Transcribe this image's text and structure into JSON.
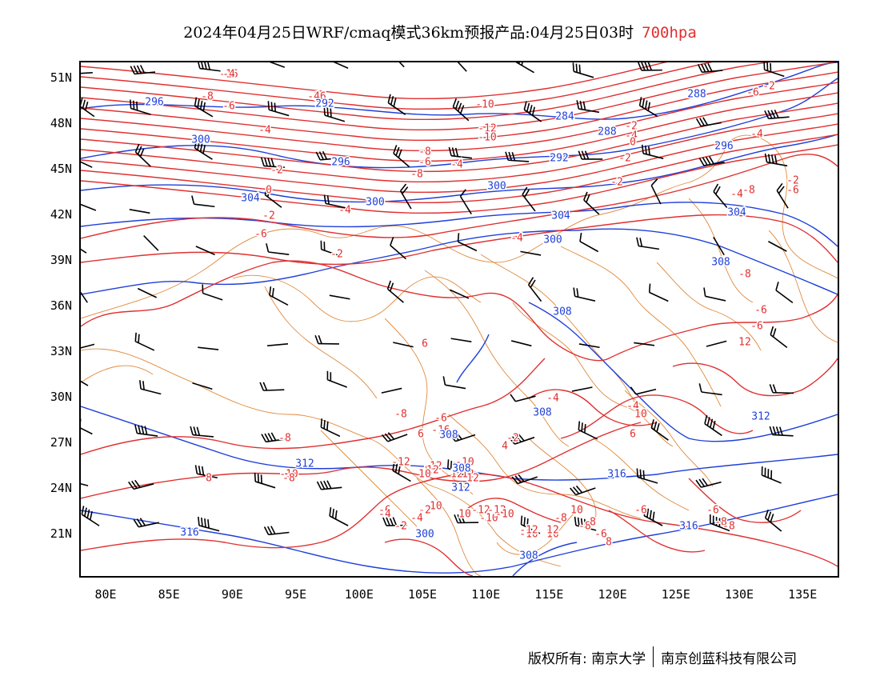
{
  "header": {
    "title": "2024年04月25日WRF/cmaq模式36km预报产品:04月25日03时",
    "level": "700hpa",
    "level_color": "#e03030"
  },
  "axes": {
    "lat_labels": [
      "51N",
      "48N",
      "45N",
      "42N",
      "39N",
      "36N",
      "33N",
      "30N",
      "27N",
      "24N",
      "21N"
    ],
    "lon_labels": [
      "80E",
      "85E",
      "90E",
      "95E",
      "100E",
      "105E",
      "110E",
      "115E",
      "120E",
      "125E",
      "130E",
      "135E"
    ]
  },
  "map": {
    "temperature_color": "#e03030",
    "height_color": "#1f3fd8",
    "border_color": "#e08a3c",
    "wind_barb_color": "#000000",
    "temperature_labels": [
      "-16",
      "-16",
      "-10",
      "-8",
      "-6",
      "-12",
      "-10",
      "-4",
      "-8",
      "-2",
      "-4",
      "-6",
      "-2",
      "0",
      "-2",
      "-4",
      "-6",
      "-8",
      "-2",
      "-2",
      "-6",
      "-4",
      "0",
      "-2",
      "-4",
      "-8",
      "-2",
      "-6",
      "-4",
      "-2",
      "-4",
      "-6",
      "-8",
      "-4",
      "6",
      "-4",
      "-2",
      "4",
      "6",
      "-8",
      "6",
      "8",
      "-10",
      "-12",
      "-8",
      "-10",
      "-12",
      "-10",
      "-12",
      "-16",
      "-8",
      "-6",
      "-8",
      "-6",
      "-4",
      "-2",
      "-2",
      "-4",
      "-6",
      "-8",
      "-8",
      "-6",
      "-10",
      "10",
      "12",
      "10",
      "12",
      "12",
      "10",
      "-12",
      "-10",
      "-12",
      "-10",
      "-12",
      "12",
      "-8",
      "10",
      "-8",
      "8",
      "-6",
      "8",
      "10",
      "12",
      "-6",
      "-4",
      "4"
    ],
    "height_labels": [
      "296",
      "292",
      "300",
      "296",
      "304",
      "300",
      "292",
      "288",
      "284",
      "288",
      "296",
      "300",
      "308",
      "304",
      "300",
      "304",
      "308",
      "308",
      "308",
      "308",
      "312",
      "312",
      "312",
      "316",
      "316",
      "316",
      "308",
      "300"
    ]
  },
  "footer": {
    "left": "版权所有: 南京大学",
    "right": "南京创蓝科技有限公司"
  }
}
